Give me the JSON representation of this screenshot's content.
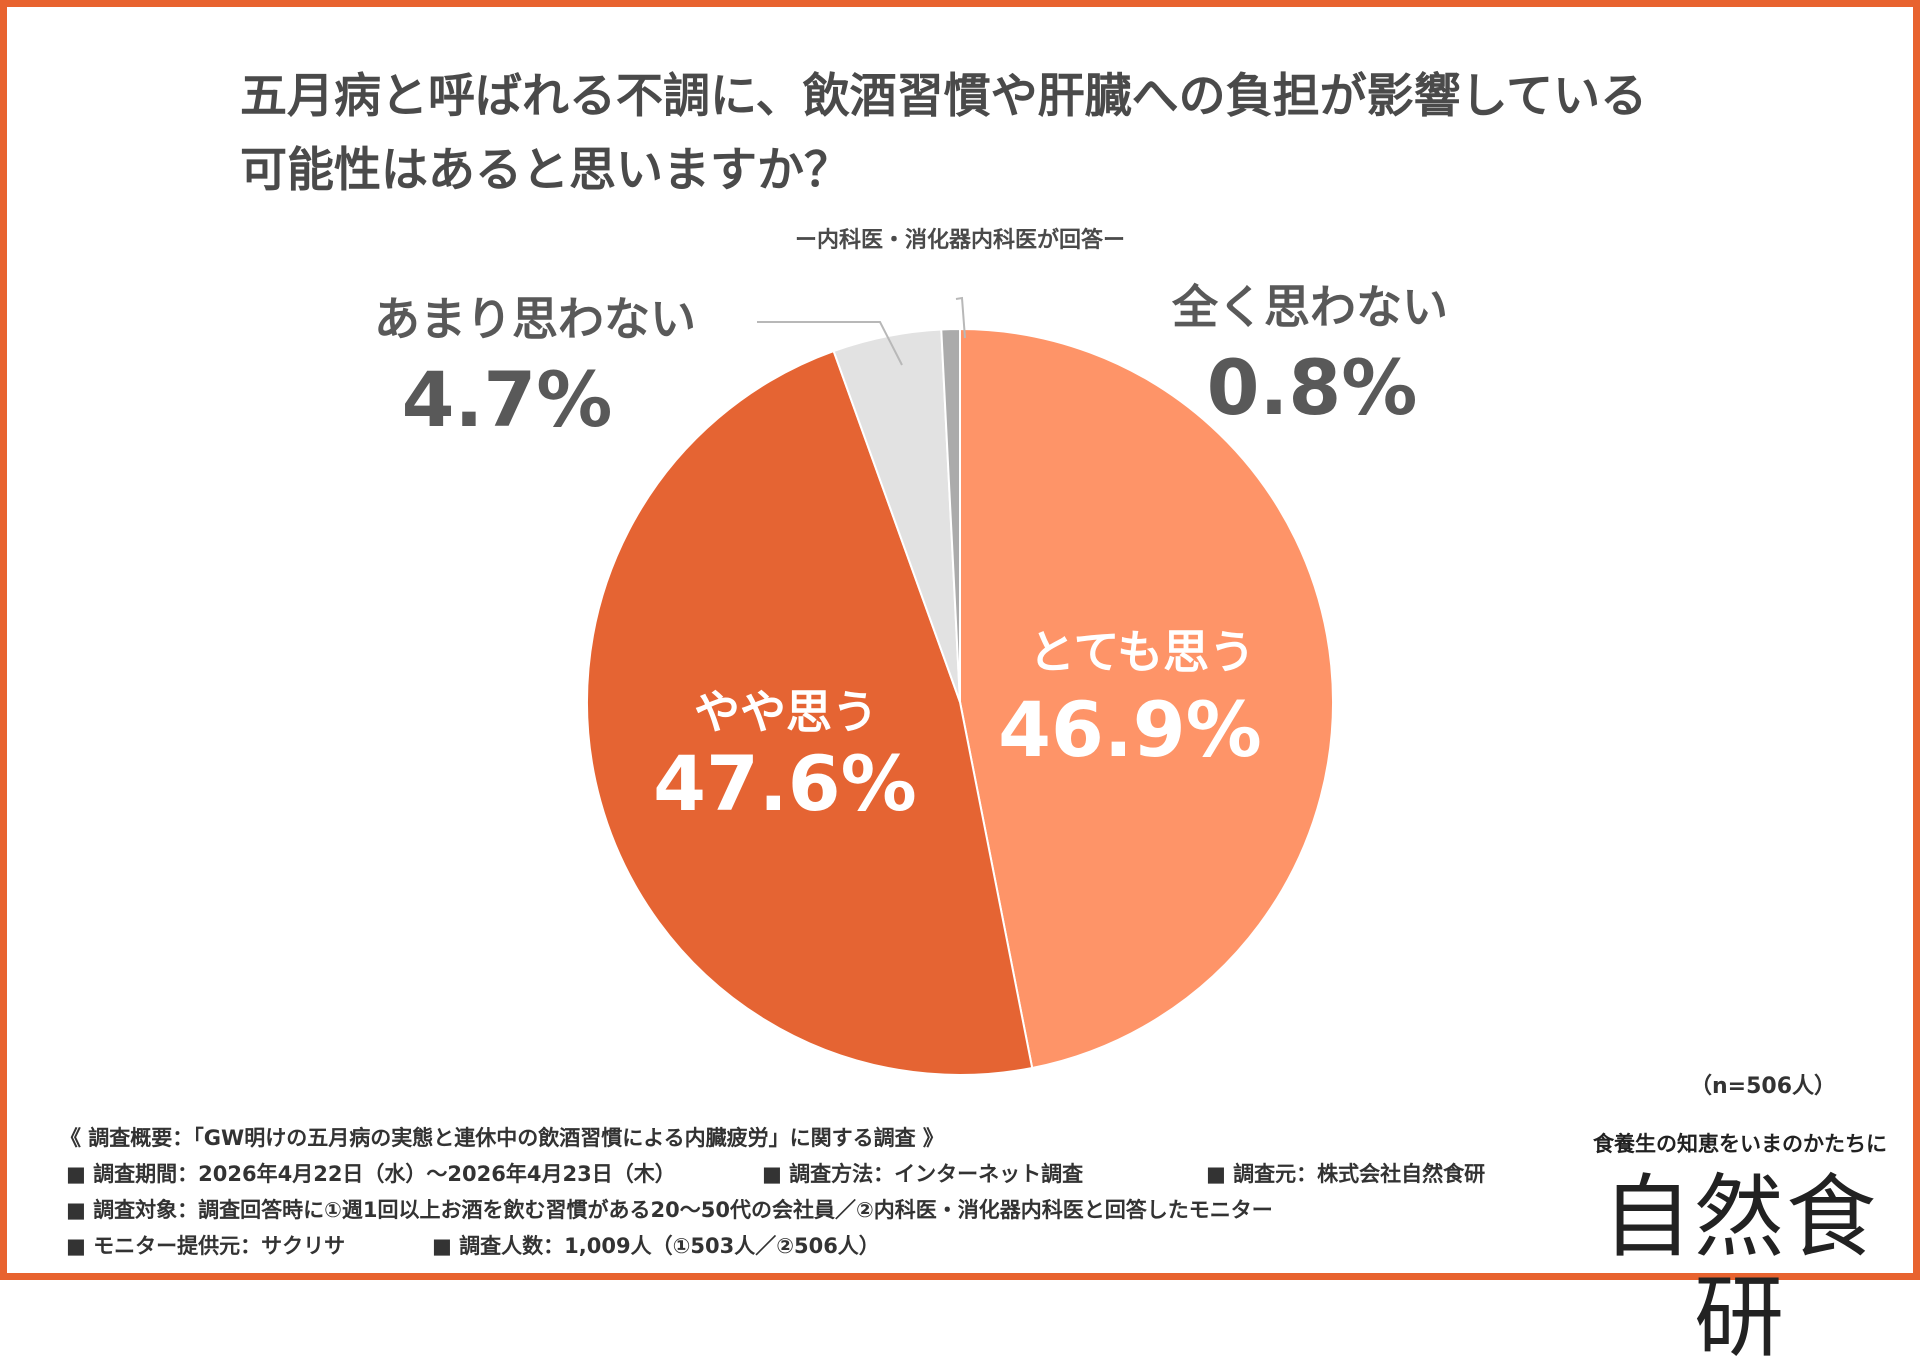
{
  "title_line1": "五月病と呼ばれる不調に、飲酒習慣や肝臓への負担が影響している",
  "title_line2": "可能性はあると思いますか？",
  "subtitle": "ー内科医・消化器内科医が回答ー",
  "n_count": "（n=506人）",
  "chart_data": {
    "type": "pie",
    "title": "五月病と呼ばれる不調に、飲酒習慣や肝臓への負担が影響している可能性はあると思いますか？",
    "start_angle_deg": 0,
    "direction": "clockwise",
    "slices": [
      {
        "label": "とても思う",
        "value": 46.9,
        "value_label": "46.9%",
        "color": "#fe9468"
      },
      {
        "label": "やや思う",
        "value": 47.6,
        "value_label": "47.6%",
        "color": "#e56433"
      },
      {
        "label": "あまり思わない",
        "value": 4.7,
        "value_label": "4.7%",
        "color": "#e2e2e2"
      },
      {
        "label": "全く思わない",
        "value": 0.8,
        "value_label": "0.8%",
        "color": "#ababab"
      }
    ]
  },
  "survey": {
    "overview": "《 調査概要：「GW明けの五月病の実態と連休中の飲酒習慣による内臓疲労」に関する調査 》",
    "period": "■ 調査期間：2026年4月22日（水）～2026年4月23日（木）",
    "method": "■ 調査方法：インターネット調査",
    "source": "■ 調査元：株式会社自然食研",
    "target": "■ 調査対象：調査回答時に①週1回以上お酒を飲む習慣がある20～50代の会社員／②内科医・消化器内科医と回答したモニター",
    "monitor": "■ モニター提供元：サクリサ",
    "count": "■ 調査人数：1,009人（①503人／②506人）"
  },
  "brand": {
    "tagline": "食養生の知恵をいまのかたちに",
    "name": "自然食研"
  }
}
